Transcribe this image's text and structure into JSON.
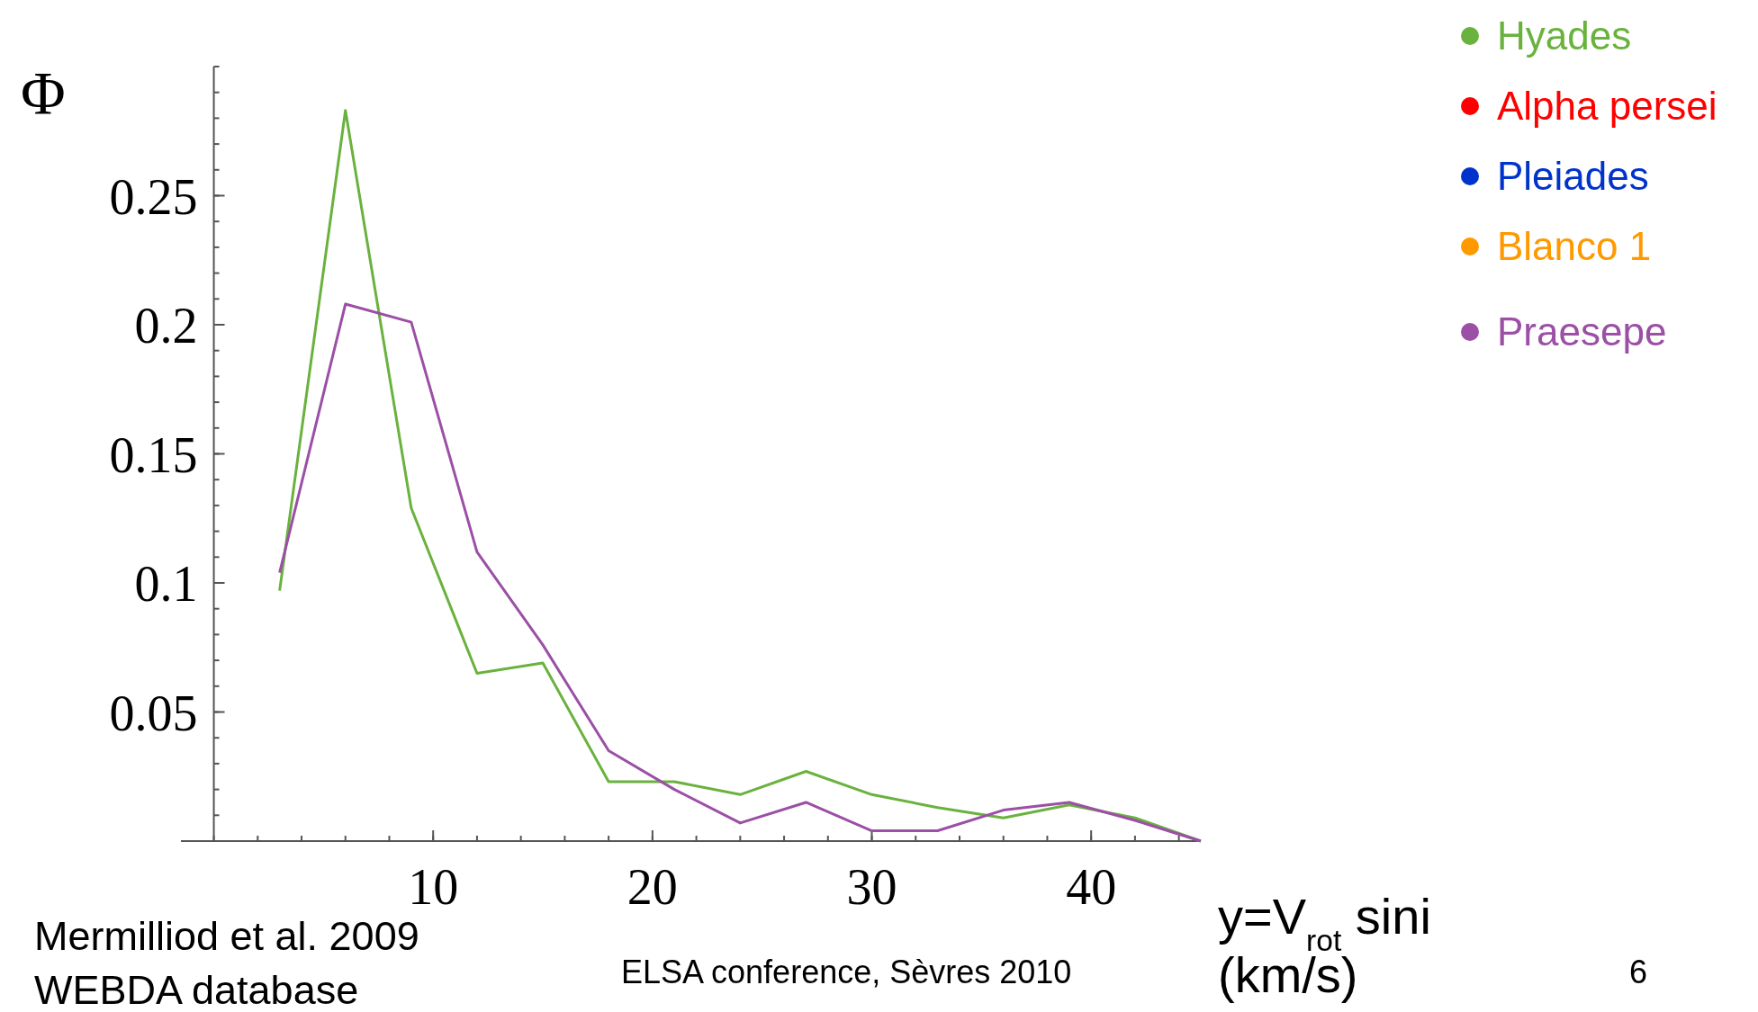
{
  "chart_data": {
    "type": "line",
    "ylabel": "Φ",
    "xlabel": "y=V$_{rot}$ sini (km/s)",
    "annotations": [
      "Mermilliod et al. 2009\nWEBDA database",
      "ELSA conference, Sèvres 2010",
      "6"
    ],
    "x": [
      3,
      6,
      9,
      12,
      15,
      18,
      21,
      24,
      27,
      30,
      33,
      36,
      39,
      42,
      45
    ],
    "series": [
      {
        "name": "Hyades",
        "color": "#6ab23e",
        "values": [
          0.097,
          0.283,
          0.129,
          0.065,
          0.069,
          0.023,
          0.023,
          0.018,
          0.027,
          0.018,
          0.013,
          0.009,
          0.014,
          0.009,
          0
        ]
      },
      {
        "name": "Alpha persei",
        "color": "#ff0000",
        "values": [
          null,
          null,
          null,
          null,
          null,
          null,
          null,
          null,
          null,
          null,
          null,
          null,
          null,
          null,
          null
        ]
      },
      {
        "name": "Pleiades",
        "color": "#0033cc",
        "values": [
          null,
          null,
          null,
          null,
          null,
          null,
          null,
          null,
          null,
          null,
          null,
          null,
          null,
          null,
          null
        ]
      },
      {
        "name": "Blanco 1",
        "color": "#ff9900",
        "values": [
          null,
          null,
          null,
          null,
          null,
          null,
          null,
          null,
          null,
          null,
          null,
          null,
          null,
          null,
          null
        ]
      },
      {
        "name": "Praesepe",
        "color": "#9b4fa5",
        "values": [
          0.104,
          0.208,
          0.201,
          0.112,
          0.076,
          0.035,
          0.02,
          0.007,
          0.015,
          0.004,
          0.004,
          0.012,
          0.015,
          0.008,
          0
        ]
      }
    ],
    "xlim": [
      -1.5,
      45
    ],
    "ylim": [
      0,
      0.3
    ],
    "xticks": [
      10,
      20,
      30,
      40
    ],
    "yticks": [
      0.05,
      0.1,
      0.15,
      0.2,
      0.25
    ],
    "grid": false,
    "legend": "top right",
    "marker": "none",
    "line_style": "solid"
  }
}
